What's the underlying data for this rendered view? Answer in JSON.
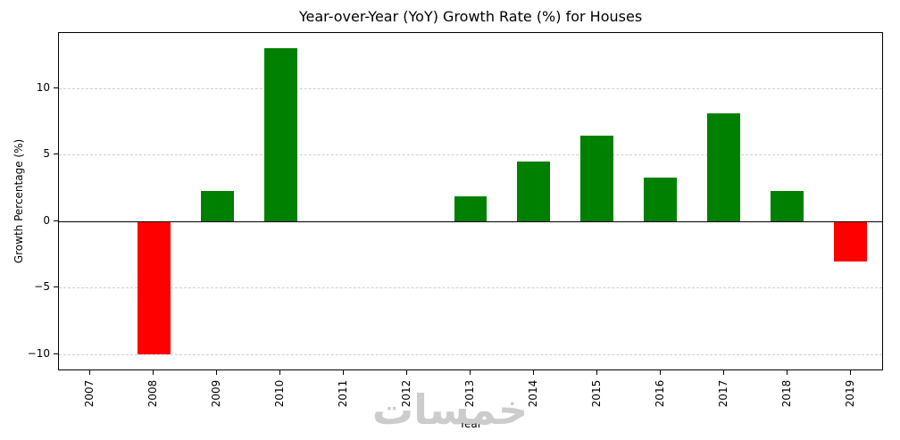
{
  "chart_data": {
    "type": "bar",
    "title": "Year-over-Year (YoY) Growth Rate (%) for Houses",
    "xlabel": "Year",
    "ylabel": "Growth Percentage (%)",
    "categories": [
      "2007",
      "2008",
      "2009",
      "2010",
      "2011",
      "2012",
      "2013",
      "2014",
      "2015",
      "2016",
      "2017",
      "2018",
      "2019"
    ],
    "values": [
      0,
      -10.0,
      2.3,
      13.0,
      0,
      0,
      1.9,
      4.5,
      6.4,
      3.3,
      8.1,
      2.3,
      -3.0
    ],
    "ylim": [
      -11.15,
      14.15
    ],
    "yticks": [
      -10,
      -5,
      0,
      5,
      10
    ],
    "positive_color": "#008000",
    "negative_color": "#ff0000",
    "grid": "dashed-horizontal",
    "legend_position": "none",
    "bar_width_fraction": 0.52
  },
  "watermark": {
    "text": "خمسات"
  }
}
